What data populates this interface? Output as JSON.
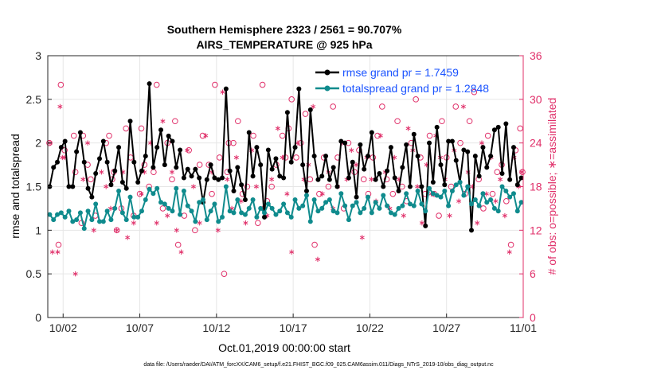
{
  "chart_data": {
    "type": "line",
    "title": "Southern Hemisphere 2323 / 2561 = 90.707%",
    "subtitle": "AIRS_TEMPERATURE @ 925 hPa",
    "xlabel": "Oct.01,2019 00:00:00 start",
    "ylabel_left": "rmse and totalspread",
    "ylabel_right": "# of obs: o=possible; ∗=assimilated",
    "footnote": "data file: /Users/raeder/DAI/ATM_forcXX/CAM6_setup/f.e21.FHIST_BGC.f09_025.CAM6assim.011/Diags_NTrS_2019-10/obs_diag_output.nc",
    "xlim": [
      0.5,
      31.5
    ],
    "ylim_left": [
      0,
      3
    ],
    "ylim_right": [
      0,
      36
    ],
    "grid": true,
    "legend_position": "top-right",
    "x_ticks": [
      {
        "x": 1.5,
        "label": "10/02"
      },
      {
        "x": 6.5,
        "label": "10/07"
      },
      {
        "x": 11.5,
        "label": "10/12"
      },
      {
        "x": 16.5,
        "label": "10/17"
      },
      {
        "x": 21.5,
        "label": "10/22"
      },
      {
        "x": 26.5,
        "label": "10/27"
      },
      {
        "x": 31.5,
        "label": "11/01"
      }
    ],
    "y_ticks_left": [
      "0",
      "0.5",
      "1",
      "1.5",
      "2",
      "2.5",
      "3"
    ],
    "y_ticks_right": [
      "0",
      "6",
      "12",
      "18",
      "24",
      "30",
      "36"
    ],
    "series": [
      {
        "name": "rmse grand pr = 1.7459",
        "color": "#000000",
        "marker": "dot",
        "axis": "left",
        "x": [
          0.625,
          0.875,
          1.125,
          1.375,
          1.625,
          1.875,
          2.125,
          2.375,
          2.625,
          2.875,
          3.125,
          3.375,
          3.625,
          3.875,
          4.125,
          4.375,
          4.625,
          4.875,
          5.125,
          5.375,
          5.625,
          5.875,
          6.125,
          6.375,
          6.625,
          6.875,
          7.125,
          7.375,
          7.625,
          7.875,
          8.125,
          8.375,
          8.625,
          8.875,
          9.125,
          9.375,
          9.625,
          9.875,
          10.125,
          10.375,
          10.625,
          10.875,
          11.125,
          11.375,
          11.625,
          11.875,
          12.125,
          12.375,
          12.625,
          12.875,
          13.125,
          13.375,
          13.625,
          13.875,
          14.125,
          14.375,
          14.625,
          14.875,
          15.125,
          15.375,
          15.625,
          15.875,
          16.125,
          16.375,
          16.625,
          16.875,
          17.125,
          17.375,
          17.625,
          17.875,
          18.125,
          18.375,
          18.625,
          18.875,
          19.125,
          19.375,
          19.625,
          19.875,
          20.125,
          20.375,
          20.625,
          20.875,
          21.125,
          21.375,
          21.625,
          21.875,
          22.125,
          22.375,
          22.625,
          22.875,
          23.125,
          23.375,
          23.625,
          23.875,
          24.125,
          24.375,
          24.625,
          24.875,
          25.125,
          25.375,
          25.625,
          25.875,
          26.125,
          26.375,
          26.625,
          26.875,
          27.125,
          27.375,
          27.625,
          27.875,
          28.125,
          28.375,
          28.625,
          28.875,
          29.125,
          29.375,
          29.625,
          29.875,
          30.125,
          30.375,
          30.625,
          30.875,
          31.125,
          31.375
        ],
        "values": [
          1.5,
          1.72,
          1.78,
          1.95,
          2.02,
          1.5,
          1.5,
          1.9,
          2.12,
          1.78,
          1.48,
          1.38,
          1.65,
          1.82,
          2.02,
          1.78,
          1.52,
          1.68,
          1.95,
          1.55,
          1.48,
          2.25,
          1.78,
          1.55,
          1.68,
          1.85,
          2.68,
          1.72,
          1.95,
          2.15,
          1.75,
          2.08,
          2.02,
          1.72,
          1.92,
          1.6,
          1.7,
          1.62,
          1.7,
          1.6,
          1.32,
          1.58,
          1.75,
          1.6,
          1.58,
          1.6,
          2.62,
          1.68,
          1.45,
          1.72,
          1.52,
          1.35,
          2.12,
          1.62,
          1.95,
          1.75,
          1.15,
          1.92,
          1.7,
          1.82,
          1.62,
          1.6,
          2.35,
          1.78,
          1.95,
          2.62,
          1.75,
          1.45,
          2.38,
          1.85,
          1.58,
          1.62,
          1.85,
          1.58,
          1.72,
          1.5,
          2.02,
          2.0,
          1.6,
          1.78,
          1.38,
          1.98,
          1.7,
          1.85,
          2.12,
          1.58,
          1.65,
          1.5,
          1.68,
          1.95,
          1.6,
          1.45,
          1.72,
          1.98,
          1.5,
          2.1,
          1.85,
          1.5,
          1.05,
          2.0,
          1.55,
          2.18,
          1.75,
          1.52,
          2.02,
          2.02,
          1.8,
          1.55,
          1.92,
          1.9,
          1.0,
          1.85,
          1.62,
          1.95,
          1.72,
          1.85,
          2.15,
          2.18,
          1.65,
          2.22,
          1.58,
          1.95,
          1.52,
          1.6
        ]
      },
      {
        "name": "totalspread grand pr = 1.2848",
        "color": "#0f8b8d",
        "marker": "dot",
        "axis": "left",
        "x": [
          0.625,
          0.875,
          1.125,
          1.375,
          1.625,
          1.875,
          2.125,
          2.375,
          2.625,
          2.875,
          3.125,
          3.375,
          3.625,
          3.875,
          4.125,
          4.375,
          4.625,
          4.875,
          5.125,
          5.375,
          5.625,
          5.875,
          6.125,
          6.375,
          6.625,
          6.875,
          7.125,
          7.375,
          7.625,
          7.875,
          8.125,
          8.375,
          8.625,
          8.875,
          9.125,
          9.375,
          9.625,
          9.875,
          10.125,
          10.375,
          10.625,
          10.875,
          11.125,
          11.375,
          11.625,
          11.875,
          12.125,
          12.375,
          12.625,
          12.875,
          13.125,
          13.375,
          13.625,
          13.875,
          14.125,
          14.375,
          14.625,
          14.875,
          15.125,
          15.375,
          15.625,
          15.875,
          16.125,
          16.375,
          16.625,
          16.875,
          17.125,
          17.375,
          17.625,
          17.875,
          18.125,
          18.375,
          18.625,
          18.875,
          19.125,
          19.375,
          19.625,
          19.875,
          20.125,
          20.375,
          20.625,
          20.875,
          21.125,
          21.375,
          21.625,
          21.875,
          22.125,
          22.375,
          22.625,
          22.875,
          23.125,
          23.375,
          23.625,
          23.875,
          24.125,
          24.375,
          24.625,
          24.875,
          25.125,
          25.375,
          25.625,
          25.875,
          26.125,
          26.375,
          26.625,
          26.875,
          27.125,
          27.375,
          27.625,
          27.875,
          28.125,
          28.375,
          28.625,
          28.875,
          29.125,
          29.375,
          29.625,
          29.875,
          30.125,
          30.375,
          30.625,
          30.875,
          31.125,
          31.375
        ],
        "values": [
          1.18,
          1.12,
          1.18,
          1.2,
          1.15,
          1.22,
          1.1,
          1.12,
          1.2,
          1.02,
          1.22,
          1.12,
          1.3,
          1.1,
          1.1,
          1.22,
          1.12,
          1.25,
          1.45,
          1.2,
          1.12,
          1.38,
          1.15,
          1.15,
          1.22,
          1.35,
          1.47,
          1.42,
          1.48,
          1.32,
          1.3,
          1.25,
          1.22,
          1.48,
          1.18,
          1.45,
          1.28,
          1.22,
          1.1,
          1.32,
          1.35,
          1.12,
          1.22,
          1.3,
          1.1,
          1.15,
          1.5,
          1.22,
          1.2,
          1.35,
          1.2,
          1.18,
          1.25,
          1.35,
          1.15,
          1.25,
          1.2,
          1.3,
          1.25,
          1.18,
          1.22,
          1.3,
          1.2,
          1.15,
          1.35,
          1.25,
          1.28,
          1.4,
          1.1,
          1.35,
          1.22,
          1.25,
          1.32,
          1.35,
          1.22,
          1.2,
          1.42,
          1.28,
          1.12,
          1.28,
          1.32,
          1.2,
          1.25,
          1.38,
          1.2,
          1.32,
          1.25,
          1.4,
          1.28,
          1.2,
          1.18,
          1.25,
          1.28,
          1.42,
          1.3,
          1.28,
          1.45,
          1.3,
          1.22,
          1.48,
          1.42,
          1.4,
          1.38,
          1.45,
          1.28,
          1.45,
          1.52,
          1.55,
          1.4,
          1.5,
          1.3,
          1.35,
          1.28,
          1.42,
          1.32,
          1.35,
          1.25,
          1.22,
          1.5,
          1.45,
          1.38,
          1.42,
          1.22,
          1.32
        ]
      }
    ],
    "obs_possible": {
      "name": "possible",
      "marker": "o",
      "color": "#e0306a",
      "axis": "right",
      "x": [
        0.6,
        1.2,
        1.35,
        1.6,
        2.2,
        2.3,
        2.7,
        2.8,
        3.1,
        3.3,
        3.6,
        4.3,
        4.5,
        4.7,
        4.8,
        5.0,
        5.3,
        5.6,
        5.9,
        6.1,
        6.5,
        6.6,
        6.8,
        7.1,
        7.4,
        7.6,
        8.0,
        8.3,
        8.6,
        8.8,
        9.0,
        9.4,
        9.7,
        10.1,
        10.4,
        10.6,
        11.0,
        11.2,
        11.4,
        11.7,
        12.0,
        12.2,
        12.3,
        12.6,
        12.9,
        13.2,
        13.5,
        13.9,
        14.2,
        14.5,
        14.8,
        15.1,
        15.4,
        15.8,
        16.0,
        16.2,
        16.4,
        16.7,
        17.0,
        17.3,
        17.6,
        17.9,
        18.2,
        18.5,
        18.8,
        19.1,
        19.4,
        19.8,
        20.1,
        20.5,
        20.8,
        21.1,
        21.4,
        21.7,
        22.0,
        22.3,
        22.6,
        23.0,
        23.3,
        23.6,
        23.9,
        24.2,
        24.5,
        24.8,
        25.1,
        25.4,
        25.7,
        26.0,
        26.2,
        26.5,
        26.8,
        27.1,
        27.4,
        27.7,
        28.0,
        28.3,
        28.6,
        28.9,
        29.2,
        29.5,
        29.8,
        30.1,
        30.4,
        30.7,
        31.0,
        31.3,
        31.45
      ],
      "values": [
        24,
        10,
        32,
        23,
        25,
        20,
        13,
        25,
        21,
        19,
        14,
        24,
        25,
        19,
        20,
        12,
        15,
        26,
        22,
        14,
        17,
        26,
        21,
        18,
        20,
        32,
        15,
        24,
        19,
        27,
        10,
        14,
        23,
        12,
        21,
        25,
        21,
        17,
        32,
        22,
        6,
        20,
        24,
        24,
        27,
        17,
        18,
        25,
        13,
        32,
        16,
        18,
        21,
        25,
        22,
        26,
        30,
        22,
        24,
        28,
        19,
        10,
        17,
        22,
        18,
        29,
        22,
        15,
        24,
        20,
        23,
        19,
        17,
        22,
        25,
        29,
        19,
        17,
        27,
        18,
        16,
        24,
        30,
        22,
        17,
        25,
        17,
        14,
        27,
        22,
        18,
        29,
        24,
        17,
        27,
        31,
        19,
        15,
        25,
        17,
        20,
        21,
        16,
        10,
        23,
        26,
        20
      ],
      "note": "plotted on right axis (# of obs)"
    },
    "obs_assimilated": {
      "name": "assimilated",
      "marker": "*",
      "color": "#e0306a",
      "axis": "right",
      "x": [
        0.65,
        0.8,
        1.15,
        1.3,
        1.45,
        1.6,
        2.3,
        2.8,
        3.1,
        3.5,
        4.0,
        4.3,
        4.6,
        5.0,
        5.4,
        5.7,
        6.1,
        6.6,
        6.8,
        7.2,
        7.6,
        8.0,
        8.3,
        8.6,
        8.9,
        9.2,
        9.6,
        10.0,
        10.4,
        10.8,
        11.2,
        11.6,
        11.9,
        12.2,
        12.5,
        12.8,
        13.1,
        13.4,
        13.8,
        14.1,
        14.5,
        14.8,
        15.1,
        15.5,
        15.8,
        16.1,
        16.4,
        16.8,
        17.2,
        17.5,
        17.8,
        18.1,
        18.4,
        18.8,
        19.1,
        19.4,
        19.7,
        20.0,
        20.3,
        20.6,
        21.0,
        21.3,
        21.6,
        21.9,
        22.2,
        22.5,
        22.8,
        23.1,
        23.4,
        23.7,
        24.0,
        24.3,
        24.6,
        24.9,
        25.2,
        25.5,
        25.8,
        26.1,
        26.4,
        26.7,
        27.0,
        27.3,
        27.6,
        27.9,
        28.2,
        28.5,
        28.8,
        29.1,
        29.4,
        29.7,
        30.0,
        30.3,
        30.6,
        30.9,
        31.2,
        31.4
      ],
      "values": [
        24,
        9,
        9,
        29,
        22,
        22,
        6,
        19,
        24,
        12,
        20,
        18,
        15,
        12,
        20,
        11,
        13,
        17,
        20,
        24,
        13,
        27,
        14,
        20,
        12,
        9,
        23,
        18,
        13,
        25,
        20,
        12,
        31,
        19,
        15,
        22,
        16,
        13,
        23,
        18,
        15,
        14,
        19,
        26,
        22,
        17,
        9,
        24,
        19,
        21,
        29,
        8,
        17,
        20,
        15,
        18,
        24,
        19,
        23,
        21,
        11,
        22,
        19,
        16,
        25,
        20,
        15,
        22,
        19,
        14,
        26,
        23,
        18,
        13,
        21,
        17,
        25,
        22,
        19,
        14,
        23,
        16,
        29,
        20,
        18,
        13,
        24,
        17,
        22,
        16,
        19,
        14,
        9,
        22,
        18,
        20
      ],
      "note": "plotted on right axis (# of obs)"
    }
  }
}
